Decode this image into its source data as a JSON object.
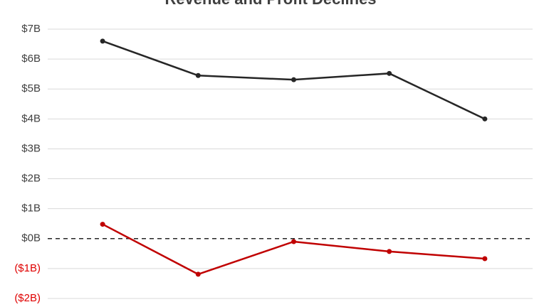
{
  "chart_data": {
    "type": "line",
    "title": "Revenue and Profit Declines",
    "categories": [
      null,
      null,
      null,
      null,
      null
    ],
    "series": [
      {
        "color": "#262626",
        "values": [
          6.6,
          5.45,
          5.31,
          5.52,
          4.0
        ]
      },
      {
        "color": "#c00000",
        "values": [
          0.48,
          -1.19,
          -0.1,
          -0.43,
          -0.67
        ]
      }
    ],
    "ylim": [
      -2,
      7
    ],
    "yticks": [
      {
        "value": 7,
        "label": "$7B"
      },
      {
        "value": 6,
        "label": "$6B"
      },
      {
        "value": 5,
        "label": "$5B"
      },
      {
        "value": 4,
        "label": "$4B"
      },
      {
        "value": 3,
        "label": "$3B"
      },
      {
        "value": 2,
        "label": "$2B"
      },
      {
        "value": 1,
        "label": "$1B"
      },
      {
        "value": 0,
        "label": "$0B"
      },
      {
        "value": -1,
        "label": "($1B)"
      },
      {
        "value": -2,
        "label": "($2B)"
      }
    ],
    "grid": true,
    "zero_line": "dashed",
    "negative_label_color": "#e00000"
  }
}
